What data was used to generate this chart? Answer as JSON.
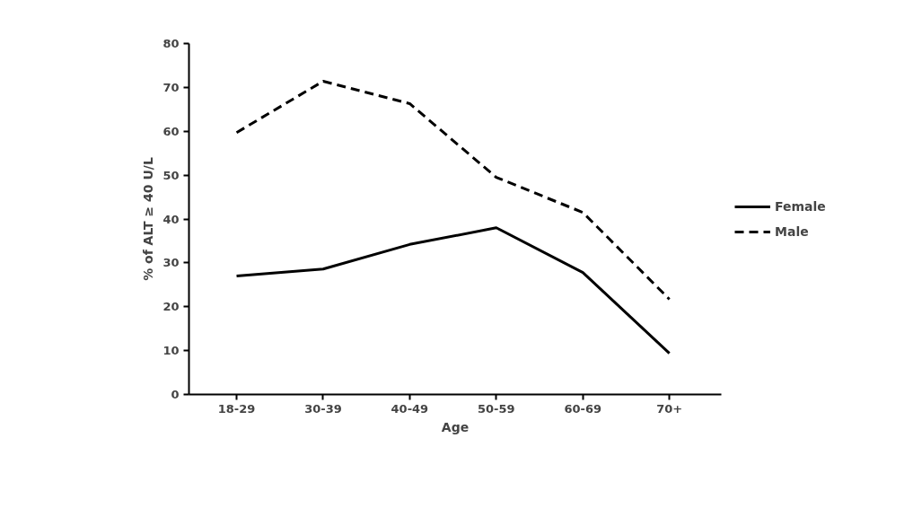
{
  "chart_data": {
    "type": "line",
    "xlabel": "Age",
    "ylabel": "% of ALT ≥ 40 U/L",
    "categories": [
      "18-29",
      "30-39",
      "40-49",
      "50-59",
      "60-69",
      "70+"
    ],
    "series": [
      {
        "name": "Female",
        "color": "#000000",
        "line_style": "solid",
        "values": [
          27.0,
          28.6,
          34.2,
          38.0,
          27.8,
          9.4
        ]
      },
      {
        "name": "Male",
        "color": "#000000",
        "line_style": "dashed",
        "values": [
          59.7,
          71.4,
          66.3,
          49.5,
          41.5,
          21.7
        ]
      }
    ],
    "ylim": [
      0,
      80
    ],
    "yticks": [
      0,
      10,
      20,
      30,
      40,
      50,
      60,
      70,
      80
    ],
    "grid": false,
    "legend": "right",
    "marker": "none"
  }
}
